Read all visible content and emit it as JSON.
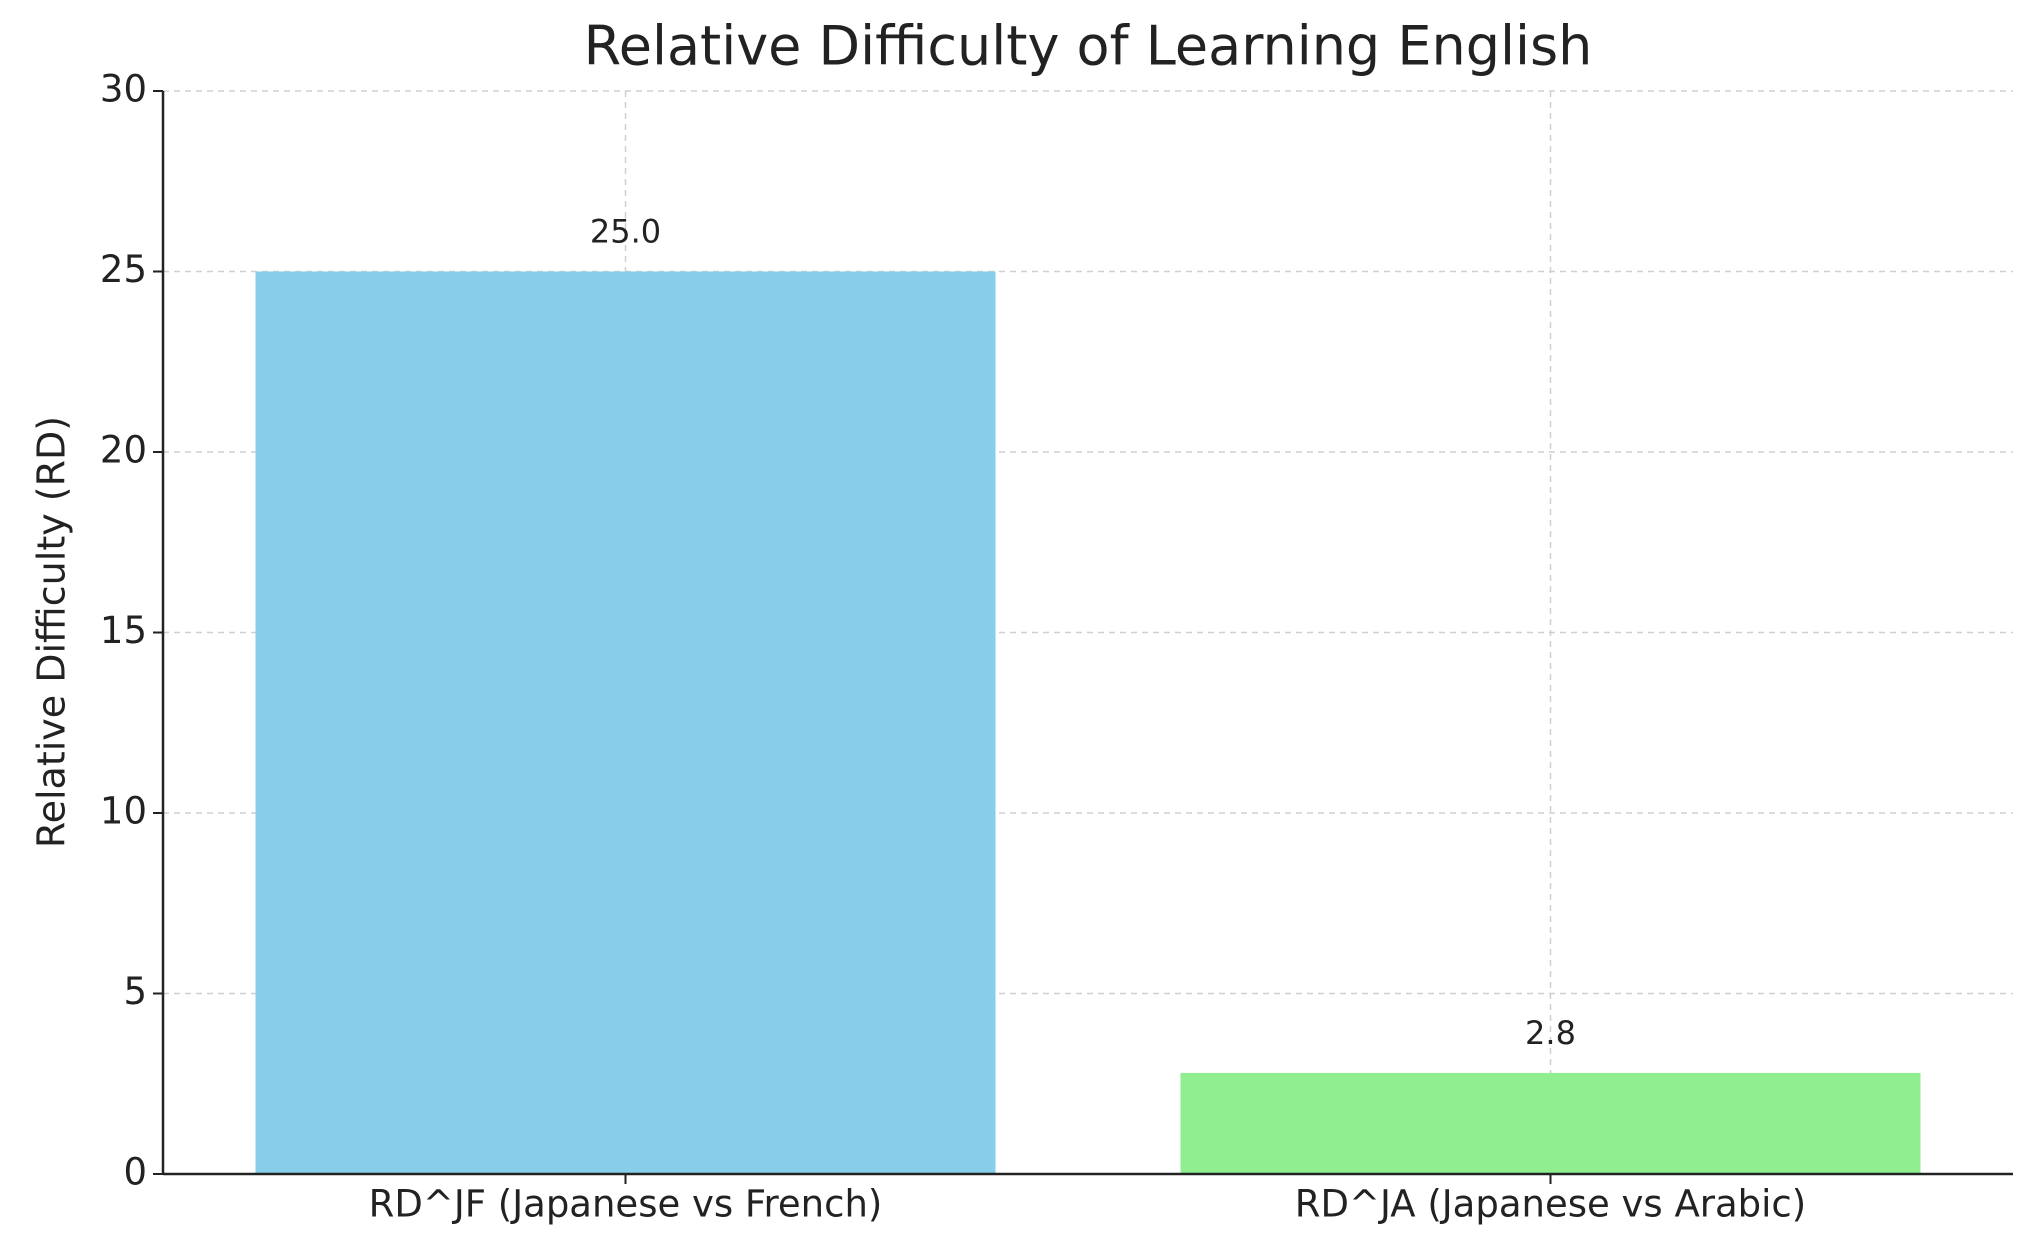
{
  "chart_data": {
    "type": "bar",
    "title": "Relative Difficulty of Learning English",
    "y_label": "Relative Difficulty (RD)",
    "categories": [
      "RD^JF (Japanese vs French)",
      "RD^JA (Japanese vs Arabic)"
    ],
    "values": [
      25.0,
      2.8
    ],
    "value_labels": [
      "25.0",
      "2.8"
    ],
    "colors": [
      "#87ceeb",
      "#90ee90"
    ],
    "ylim": [
      0,
      30
    ],
    "yticks": [
      0,
      5,
      10,
      15,
      20,
      25,
      30
    ],
    "grid": true
  }
}
